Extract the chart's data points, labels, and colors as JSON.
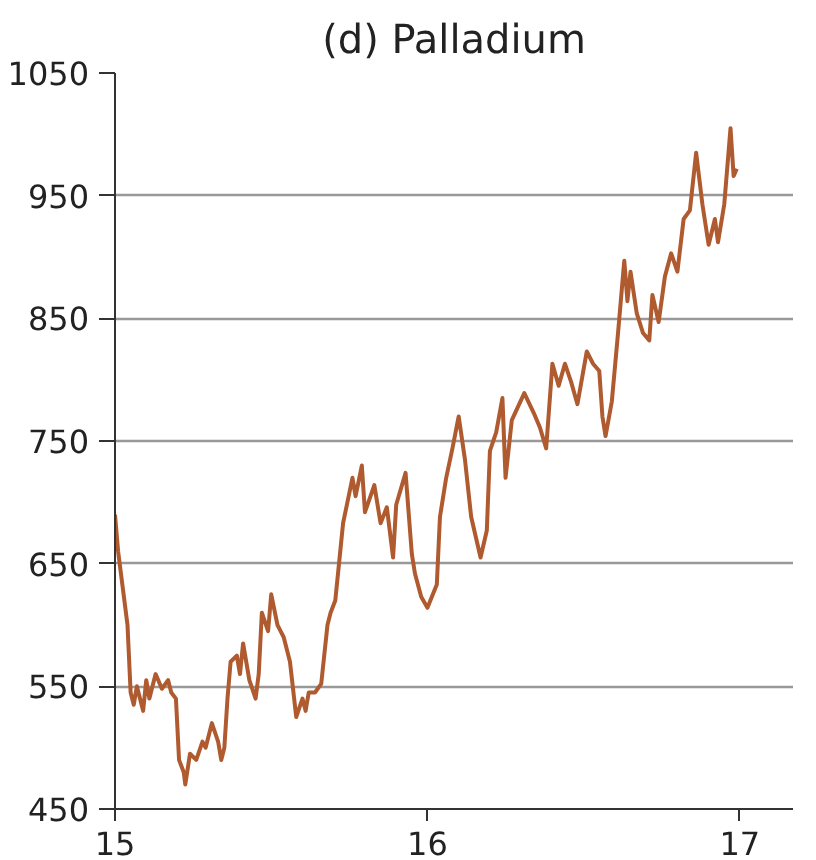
{
  "chart_data": {
    "type": "line",
    "title": "(d) Palladium",
    "xlim": [
      15,
      17.17
    ],
    "xticks": [
      15,
      16,
      17
    ],
    "ylim": [
      450,
      1050
    ],
    "yticks": [
      450,
      550,
      650,
      750,
      850,
      950,
      1050
    ],
    "grid": "y",
    "line_style": "solid",
    "series": [
      {
        "color": "#b05a2f",
        "x": [
          15.0,
          15.01,
          15.02,
          15.04,
          15.05,
          15.06,
          15.07,
          15.09,
          15.1,
          15.11,
          15.13,
          15.15,
          15.17,
          15.18,
          15.195,
          15.205,
          15.22,
          15.225,
          15.24,
          15.26,
          15.28,
          15.29,
          15.31,
          15.33,
          15.34,
          15.35,
          15.36,
          15.37,
          15.39,
          15.4,
          15.41,
          15.43,
          15.45,
          15.46,
          15.47,
          15.49,
          15.5,
          15.52,
          15.53,
          15.54,
          15.56,
          15.58,
          15.6,
          15.61,
          15.62,
          15.64,
          15.66,
          15.68,
          15.69,
          15.705,
          15.715,
          15.73,
          15.76,
          15.77,
          15.79,
          15.8,
          15.83,
          15.85,
          15.87,
          15.89,
          15.9,
          15.93,
          15.95,
          15.96,
          15.98,
          16.0,
          16.03,
          16.04,
          16.06,
          16.08,
          16.1,
          16.12,
          16.14,
          16.17,
          16.19,
          16.2,
          16.22,
          16.24,
          16.25,
          16.27,
          16.31,
          16.34,
          16.36,
          16.38,
          16.4,
          16.42,
          16.44,
          16.46,
          16.48,
          16.51,
          16.53,
          16.55,
          16.56,
          16.57,
          16.59,
          16.61,
          16.63,
          16.64,
          16.65,
          16.67,
          16.69,
          16.71,
          16.72,
          16.74,
          16.76,
          16.78,
          16.8,
          16.82,
          16.84,
          16.86,
          16.88,
          16.9,
          16.92,
          16.93,
          16.95,
          16.97,
          16.98,
          16.99
        ],
        "values": [
          690,
          660,
          640,
          600,
          545,
          535,
          550,
          530,
          555,
          540,
          560,
          548,
          555,
          545,
          540,
          490,
          480,
          470,
          495,
          490,
          505,
          500,
          520,
          505,
          490,
          500,
          540,
          570,
          575,
          560,
          585,
          555,
          540,
          560,
          610,
          595,
          625,
          600,
          595,
          590,
          570,
          525,
          540,
          530,
          545,
          545,
          552,
          600,
          610,
          620,
          645,
          683,
          720,
          705,
          730,
          692,
          714,
          683,
          696,
          655,
          698,
          724,
          658,
          642,
          623,
          614,
          633,
          688,
          720,
          744,
          770,
          735,
          688,
          655,
          677,
          742,
          757,
          785,
          720,
          767,
          789,
          773,
          761,
          744,
          813,
          795,
          813,
          798,
          780,
          823,
          813,
          807,
          770,
          754,
          782,
          838,
          897,
          864,
          888,
          854,
          838,
          832,
          869,
          847,
          884,
          903,
          888,
          931,
          938,
          985,
          943,
          910,
          931,
          912,
          943,
          1005,
          966,
          972
        ]
      }
    ]
  }
}
